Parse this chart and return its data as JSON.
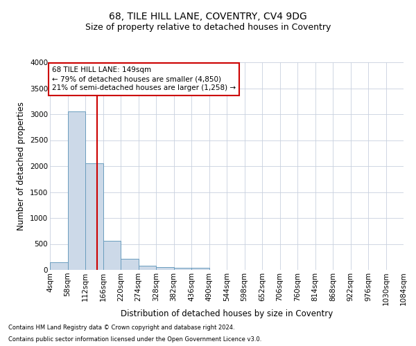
{
  "title": "68, TILE HILL LANE, COVENTRY, CV4 9DG",
  "subtitle": "Size of property relative to detached houses in Coventry",
  "xlabel": "Distribution of detached houses by size in Coventry",
  "ylabel": "Number of detached properties",
  "footnote1": "Contains HM Land Registry data © Crown copyright and database right 2024.",
  "footnote2": "Contains public sector information licensed under the Open Government Licence v3.0.",
  "annotation_title": "68 TILE HILL LANE: 149sqm",
  "annotation_line1": "← 79% of detached houses are smaller (4,850)",
  "annotation_line2": "21% of semi-detached houses are larger (1,258) →",
  "property_size": 149,
  "bin_edges": [
    4,
    58,
    112,
    166,
    220,
    274,
    328,
    382,
    436,
    490,
    544,
    598,
    652,
    706,
    760,
    814,
    868,
    922,
    976,
    1030,
    1084
  ],
  "bin_labels": [
    "4sqm",
    "58sqm",
    "112sqm",
    "166sqm",
    "220sqm",
    "274sqm",
    "328sqm",
    "382sqm",
    "436sqm",
    "490sqm",
    "544sqm",
    "598sqm",
    "652sqm",
    "706sqm",
    "760sqm",
    "814sqm",
    "868sqm",
    "922sqm",
    "976sqm",
    "1030sqm",
    "1084sqm"
  ],
  "bar_values": [
    150,
    3060,
    2060,
    560,
    210,
    75,
    55,
    45,
    40,
    0,
    0,
    0,
    0,
    0,
    0,
    0,
    0,
    0,
    0,
    0
  ],
  "bar_color": "#ccd9e8",
  "bar_edge_color": "#6a9dbe",
  "vline_color": "#cc0000",
  "vline_x": 149,
  "ylim": [
    0,
    4000
  ],
  "yticks": [
    0,
    500,
    1000,
    1500,
    2000,
    2500,
    3000,
    3500,
    4000
  ],
  "grid_color": "#c8d0de",
  "annotation_box_color": "#cc0000",
  "title_fontsize": 10,
  "subtitle_fontsize": 9,
  "axis_label_fontsize": 8.5,
  "tick_fontsize": 7.5,
  "annotation_fontsize": 7.5,
  "footnote_fontsize": 6.0
}
